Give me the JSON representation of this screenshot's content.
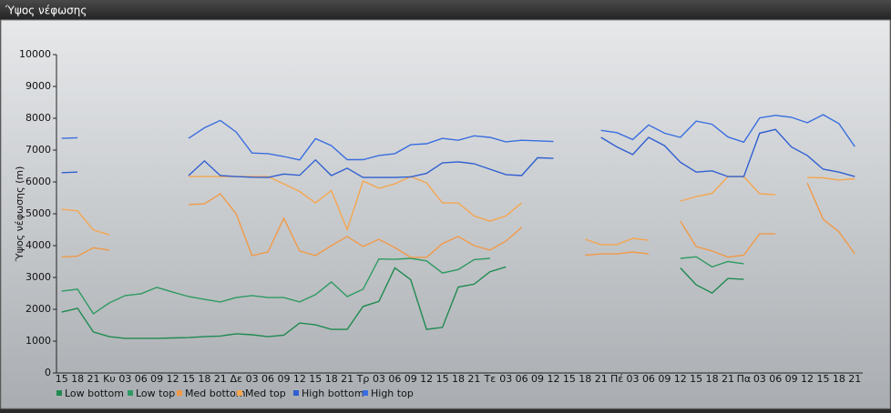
{
  "chart_data": {
    "type": "line",
    "title": "Ύψος νέφωσης",
    "y_label": "Ύψος νέφωσης (m)",
    "categories": [
      "15",
      "18",
      "21",
      "Κυ",
      "03",
      "06",
      "09",
      "12",
      "15",
      "18",
      "21",
      "Δε",
      "03",
      "06",
      "09",
      "12",
      "15",
      "18",
      "21",
      "Τρ",
      "03",
      "06",
      "09",
      "12",
      "15",
      "18",
      "21",
      "Τε",
      "03",
      "06",
      "09",
      "12",
      "15",
      "18",
      "21",
      "Πέ",
      "03",
      "06",
      "09",
      "12",
      "15",
      "18",
      "21",
      "Πα",
      "03",
      "06",
      "09",
      "12",
      "15",
      "18",
      "21"
    ],
    "ylim": [
      0,
      10000
    ],
    "yticks": [
      0,
      1000,
      2000,
      3000,
      4000,
      5000,
      6000,
      7000,
      8000,
      9000,
      10000
    ],
    "grid": false,
    "series": [
      {
        "name": "Low bottom",
        "color": "#1f8a50",
        "values": [
          1910,
          2030,
          1290,
          1140,
          1090,
          1090,
          1090,
          1100,
          1110,
          1140,
          1160,
          1230,
          1200,
          1140,
          1190,
          1570,
          1510,
          1370,
          1370,
          2090,
          2250,
          3300,
          2930,
          1370,
          1430,
          2700,
          2790,
          3180,
          3330,
          null,
          null,
          null,
          null,
          null,
          null,
          null,
          null,
          null,
          null,
          3300,
          2770,
          2510,
          2970,
          2940,
          null,
          null,
          null,
          null,
          null,
          null,
          null
        ]
      },
      {
        "name": "Low top",
        "color": "#2e9a62",
        "values": [
          2570,
          2630,
          1860,
          2200,
          2430,
          2490,
          2690,
          2540,
          2400,
          2310,
          2230,
          2370,
          2430,
          2370,
          2370,
          2230,
          2460,
          2860,
          2400,
          2630,
          3580,
          3570,
          3600,
          3520,
          3140,
          3250,
          3560,
          3600,
          null,
          null,
          null,
          null,
          null,
          null,
          null,
          null,
          null,
          null,
          null,
          3600,
          3650,
          3330,
          3500,
          3430,
          null,
          null,
          null,
          null,
          null,
          null,
          null
        ]
      },
      {
        "name": "Med bottom",
        "color": "#f09a48",
        "values": [
          3640,
          3670,
          3930,
          3860,
          null,
          null,
          null,
          null,
          5290,
          5310,
          5630,
          5000,
          3690,
          3800,
          4860,
          3830,
          3690,
          4000,
          4290,
          3970,
          4200,
          3940,
          3630,
          3630,
          4060,
          4290,
          4000,
          3860,
          4140,
          4570,
          null,
          null,
          null,
          3700,
          3740,
          3740,
          3800,
          3740,
          null,
          4770,
          3970,
          3830,
          3640,
          3700,
          4370,
          4370,
          null,
          5970,
          4830,
          4430,
          3740
        ]
      },
      {
        "name": "Med top",
        "color": "#f4a650",
        "values": [
          5140,
          5090,
          4490,
          4340,
          null,
          null,
          null,
          null,
          6170,
          6170,
          6170,
          6170,
          6170,
          6170,
          5940,
          5700,
          5340,
          5730,
          4500,
          6030,
          5800,
          5940,
          6170,
          5970,
          5340,
          5340,
          4930,
          4770,
          4930,
          5340,
          null,
          null,
          null,
          4200,
          4030,
          4030,
          4230,
          4170,
          null,
          5400,
          5540,
          5640,
          6170,
          6170,
          5630,
          5600,
          null,
          6140,
          6130,
          6060,
          6100
        ]
      },
      {
        "name": "High bottom",
        "color": "#2f5fd0",
        "values": [
          6290,
          6310,
          null,
          null,
          null,
          null,
          null,
          null,
          6200,
          6660,
          6200,
          6170,
          6150,
          6140,
          6250,
          6210,
          6690,
          6200,
          6430,
          6140,
          6140,
          6140,
          6160,
          6270,
          6600,
          6630,
          6570,
          6400,
          6230,
          6200,
          6760,
          6740,
          null,
          null,
          7400,
          7100,
          6860,
          7400,
          7140,
          6620,
          6310,
          6350,
          6170,
          6170,
          7530,
          7650,
          7100,
          6830,
          6400,
          6310,
          6170
        ]
      },
      {
        "name": "High top",
        "color": "#3a6ee0",
        "values": [
          7370,
          7390,
          null,
          null,
          null,
          null,
          null,
          null,
          7370,
          7700,
          7930,
          7570,
          6910,
          6890,
          6800,
          6690,
          7360,
          7140,
          6700,
          6700,
          6830,
          6890,
          7170,
          7200,
          7370,
          7310,
          7450,
          7400,
          7260,
          7310,
          7290,
          7270,
          null,
          null,
          7620,
          7550,
          7330,
          7790,
          7530,
          7400,
          7910,
          7810,
          7410,
          7250,
          8010,
          8090,
          8030,
          7860,
          8110,
          7830,
          7110
        ]
      }
    ]
  }
}
